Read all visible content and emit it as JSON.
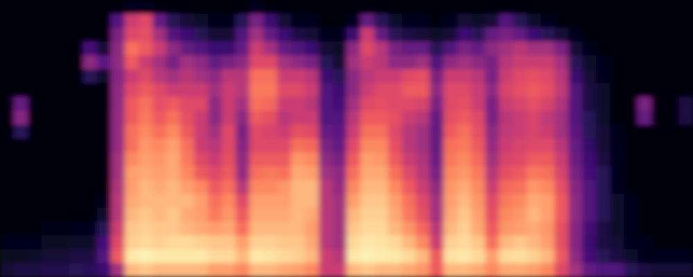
{
  "chart_data": {
    "type": "heatmap",
    "tick_labels": false,
    "color": "magma",
    "zlim": [
      0,
      100
    ],
    "values": [
      [
        2,
        2,
        2,
        2,
        2,
        2,
        2,
        2,
        2,
        2,
        2,
        2,
        2,
        2,
        2,
        2,
        3,
        5,
        6,
        10
      ],
      [
        2,
        2,
        2,
        2,
        2,
        2,
        2,
        30,
        38,
        15,
        2,
        2,
        2,
        2,
        2,
        2,
        3,
        5,
        6,
        12
      ],
      [
        2,
        2,
        2,
        2,
        2,
        2,
        2,
        3,
        3,
        2,
        2,
        2,
        2,
        2,
        2,
        2,
        3,
        5,
        8,
        12
      ],
      [
        2,
        2,
        2,
        2,
        2,
        2,
        2,
        2,
        2,
        2,
        2,
        2,
        2,
        2,
        2,
        2,
        4,
        6,
        10,
        14
      ],
      [
        2,
        2,
        2,
        2,
        2,
        2,
        2,
        2,
        2,
        2,
        2,
        2,
        2,
        2,
        2,
        3,
        4,
        6,
        10,
        14
      ],
      [
        2,
        2,
        2,
        2,
        2,
        2,
        2,
        2,
        2,
        2,
        2,
        2,
        2,
        2,
        3,
        3,
        5,
        8,
        12,
        15
      ],
      [
        2,
        2,
        2,
        22,
        40,
        15,
        2,
        2,
        2,
        2,
        2,
        2,
        2,
        2,
        3,
        3,
        5,
        8,
        12,
        16
      ],
      [
        2,
        2,
        2,
        10,
        28,
        8,
        2,
        2,
        2,
        2,
        2,
        2,
        3,
        3,
        5,
        8,
        15,
        22,
        25,
        20
      ],
      [
        3,
        25,
        35,
        40,
        40,
        38,
        40,
        40,
        42,
        42,
        42,
        45,
        45,
        48,
        50,
        50,
        55,
        60,
        65,
        45
      ],
      [
        5,
        55,
        60,
        70,
        65,
        55,
        60,
        65,
        65,
        70,
        70,
        75,
        80,
        80,
        82,
        85,
        88,
        90,
        95,
        85
      ],
      [
        5,
        60,
        62,
        65,
        55,
        60,
        65,
        70,
        72,
        75,
        78,
        80,
        82,
        85,
        85,
        88,
        90,
        92,
        97,
        88
      ],
      [
        3,
        30,
        45,
        55,
        45,
        50,
        60,
        62,
        65,
        70,
        75,
        78,
        80,
        82,
        85,
        85,
        88,
        90,
        95,
        85
      ],
      [
        3,
        15,
        25,
        40,
        35,
        45,
        55,
        65,
        70,
        75,
        80,
        82,
        82,
        85,
        85,
        88,
        88,
        92,
        95,
        85
      ],
      [
        3,
        10,
        20,
        30,
        45,
        50,
        55,
        60,
        62,
        65,
        70,
        72,
        75,
        80,
        85,
        82,
        85,
        92,
        95,
        85
      ],
      [
        3,
        8,
        15,
        25,
        40,
        45,
        55,
        60,
        55,
        55,
        55,
        60,
        65,
        75,
        80,
        80,
        82,
        90,
        95,
        85
      ],
      [
        2,
        5,
        10,
        20,
        30,
        40,
        45,
        40,
        40,
        45,
        50,
        55,
        60,
        65,
        70,
        72,
        80,
        88,
        92,
        80
      ],
      [
        2,
        5,
        10,
        20,
        35,
        50,
        55,
        55,
        55,
        60,
        60,
        62,
        65,
        70,
        75,
        78,
        82,
        88,
        92,
        80
      ],
      [
        3,
        15,
        25,
        30,
        40,
        50,
        50,
        45,
        40,
        35,
        38,
        40,
        42,
        50,
        60,
        65,
        70,
        80,
        85,
        75
      ],
      [
        5,
        35,
        45,
        55,
        60,
        70,
        72,
        70,
        65,
        60,
        60,
        65,
        70,
        75,
        80,
        82,
        85,
        90,
        95,
        85
      ],
      [
        3,
        20,
        30,
        45,
        60,
        70,
        72,
        68,
        62,
        58,
        60,
        65,
        72,
        75,
        80,
        82,
        85,
        90,
        94,
        85
      ],
      [
        3,
        10,
        20,
        30,
        45,
        55,
        60,
        55,
        50,
        55,
        60,
        65,
        70,
        78,
        80,
        82,
        85,
        88,
        92,
        82
      ],
      [
        3,
        5,
        12,
        25,
        40,
        55,
        60,
        55,
        55,
        62,
        70,
        78,
        82,
        85,
        85,
        85,
        85,
        88,
        90,
        80
      ],
      [
        2,
        5,
        10,
        20,
        35,
        50,
        55,
        50,
        55,
        60,
        68,
        75,
        80,
        85,
        85,
        82,
        80,
        82,
        85,
        75
      ],
      [
        2,
        3,
        5,
        10,
        15,
        20,
        25,
        25,
        25,
        30,
        35,
        40,
        45,
        50,
        50,
        50,
        50,
        50,
        55,
        55
      ],
      [
        2,
        3,
        5,
        8,
        10,
        15,
        20,
        22,
        25,
        28,
        30,
        35,
        40,
        42,
        45,
        45,
        45,
        45,
        50,
        55
      ],
      [
        3,
        5,
        20,
        40,
        45,
        40,
        40,
        45,
        50,
        55,
        60,
        65,
        70,
        75,
        80,
        85,
        88,
        92,
        95,
        85
      ],
      [
        3,
        30,
        55,
        60,
        55,
        50,
        55,
        60,
        65,
        70,
        75,
        80,
        82,
        85,
        88,
        90,
        92,
        95,
        97,
        88
      ],
      [
        3,
        15,
        30,
        50,
        50,
        55,
        60,
        62,
        65,
        70,
        75,
        78,
        82,
        85,
        88,
        90,
        92,
        94,
        96,
        85
      ],
      [
        3,
        8,
        15,
        35,
        40,
        55,
        60,
        60,
        62,
        60,
        62,
        65,
        70,
        75,
        80,
        82,
        85,
        92,
        95,
        85
      ],
      [
        3,
        5,
        12,
        30,
        40,
        60,
        65,
        60,
        55,
        50,
        50,
        55,
        60,
        65,
        70,
        72,
        78,
        85,
        92,
        82
      ],
      [
        2,
        5,
        10,
        30,
        45,
        62,
        65,
        58,
        50,
        45,
        45,
        48,
        50,
        55,
        60,
        62,
        68,
        75,
        85,
        78
      ],
      [
        2,
        3,
        8,
        15,
        25,
        35,
        40,
        35,
        30,
        30,
        30,
        32,
        35,
        40,
        45,
        45,
        50,
        55,
        65,
        65
      ],
      [
        3,
        5,
        10,
        25,
        40,
        55,
        60,
        60,
        62,
        65,
        70,
        72,
        75,
        78,
        80,
        82,
        85,
        90,
        94,
        85
      ],
      [
        3,
        10,
        20,
        35,
        45,
        55,
        60,
        62,
        65,
        70,
        72,
        75,
        78,
        82,
        85,
        88,
        90,
        92,
        95,
        85
      ],
      [
        3,
        8,
        15,
        30,
        40,
        50,
        55,
        55,
        60,
        62,
        65,
        68,
        72,
        75,
        78,
        80,
        82,
        88,
        92,
        82
      ],
      [
        3,
        10,
        30,
        40,
        35,
        35,
        40,
        35,
        35,
        40,
        42,
        45,
        50,
        55,
        60,
        62,
        65,
        70,
        80,
        75
      ],
      [
        3,
        25,
        35,
        45,
        50,
        55,
        58,
        55,
        50,
        52,
        55,
        58,
        62,
        68,
        72,
        75,
        78,
        85,
        92,
        82
      ],
      [
        3,
        15,
        30,
        50,
        55,
        60,
        62,
        58,
        55,
        55,
        58,
        60,
        65,
        70,
        75,
        78,
        80,
        88,
        93,
        82
      ],
      [
        3,
        8,
        20,
        45,
        55,
        62,
        65,
        62,
        58,
        58,
        60,
        65,
        72,
        78,
        82,
        85,
        82,
        85,
        90,
        80
      ],
      [
        2,
        5,
        15,
        45,
        55,
        60,
        62,
        58,
        52,
        55,
        60,
        65,
        70,
        75,
        80,
        80,
        78,
        80,
        85,
        75
      ],
      [
        2,
        3,
        10,
        35,
        45,
        50,
        52,
        48,
        45,
        45,
        50,
        55,
        58,
        62,
        65,
        65,
        62,
        62,
        65,
        60
      ],
      [
        2,
        3,
        5,
        10,
        15,
        20,
        25,
        25,
        25,
        28,
        30,
        32,
        35,
        38,
        40,
        40,
        38,
        38,
        40,
        45
      ],
      [
        2,
        2,
        3,
        5,
        8,
        10,
        12,
        12,
        15,
        15,
        18,
        20,
        22,
        25,
        25,
        25,
        22,
        20,
        22,
        30
      ],
      [
        2,
        2,
        2,
        3,
        5,
        5,
        8,
        8,
        8,
        10,
        10,
        12,
        15,
        15,
        15,
        15,
        12,
        12,
        15,
        25
      ],
      [
        2,
        2,
        2,
        2,
        3,
        3,
        3,
        3,
        3,
        5,
        5,
        5,
        5,
        5,
        8,
        8,
        8,
        10,
        12,
        25
      ],
      [
        2,
        2,
        2,
        2,
        2,
        2,
        2,
        3,
        3,
        3,
        3,
        3,
        3,
        3,
        5,
        5,
        5,
        5,
        8,
        15
      ],
      [
        2,
        2,
        2,
        2,
        2,
        2,
        2,
        35,
        30,
        3,
        3,
        3,
        3,
        3,
        3,
        3,
        3,
        5,
        5,
        12
      ],
      [
        2,
        2,
        2,
        2,
        2,
        2,
        2,
        2,
        2,
        2,
        2,
        2,
        2,
        2,
        2,
        2,
        2,
        2,
        5,
        10
      ],
      [
        2,
        2,
        2,
        2,
        2,
        2,
        2,
        3,
        3,
        2,
        2,
        2,
        2,
        2,
        2,
        2,
        2,
        2,
        5,
        10
      ],
      [
        2,
        2,
        2,
        2,
        2,
        2,
        2,
        12,
        12,
        2,
        2,
        2,
        2,
        2,
        2,
        2,
        2,
        3,
        5,
        10
      ]
    ]
  }
}
